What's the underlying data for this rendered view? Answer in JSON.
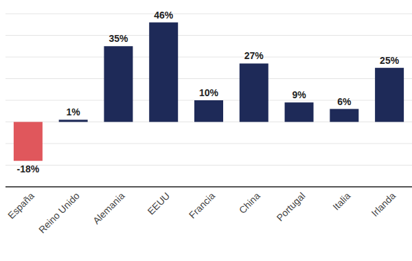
{
  "chart_data": {
    "type": "bar",
    "categories": [
      "España",
      "Reino Unido",
      "Alemania",
      "EEUU",
      "Francia",
      "China",
      "Portugal",
      "Italia",
      "Irlanda"
    ],
    "values": [
      -18,
      1,
      35,
      46,
      10,
      27,
      9,
      6,
      25
    ],
    "value_labels": [
      "-18%",
      "1%",
      "35%",
      "46%",
      "10%",
      "27%",
      "9%",
      "6%",
      "25%"
    ],
    "colors": [
      "#e0575c",
      "#1e2a58",
      "#1e2a58",
      "#1e2a58",
      "#1e2a58",
      "#1e2a58",
      "#1e2a58",
      "#1e2a58",
      "#1e2a58"
    ],
    "ylim": [
      -30,
      50
    ],
    "yticks": [
      -30,
      -20,
      -10,
      0,
      10,
      20,
      30,
      40,
      50
    ],
    "grid": true,
    "data_labels": true,
    "tick_labels": "x"
  }
}
